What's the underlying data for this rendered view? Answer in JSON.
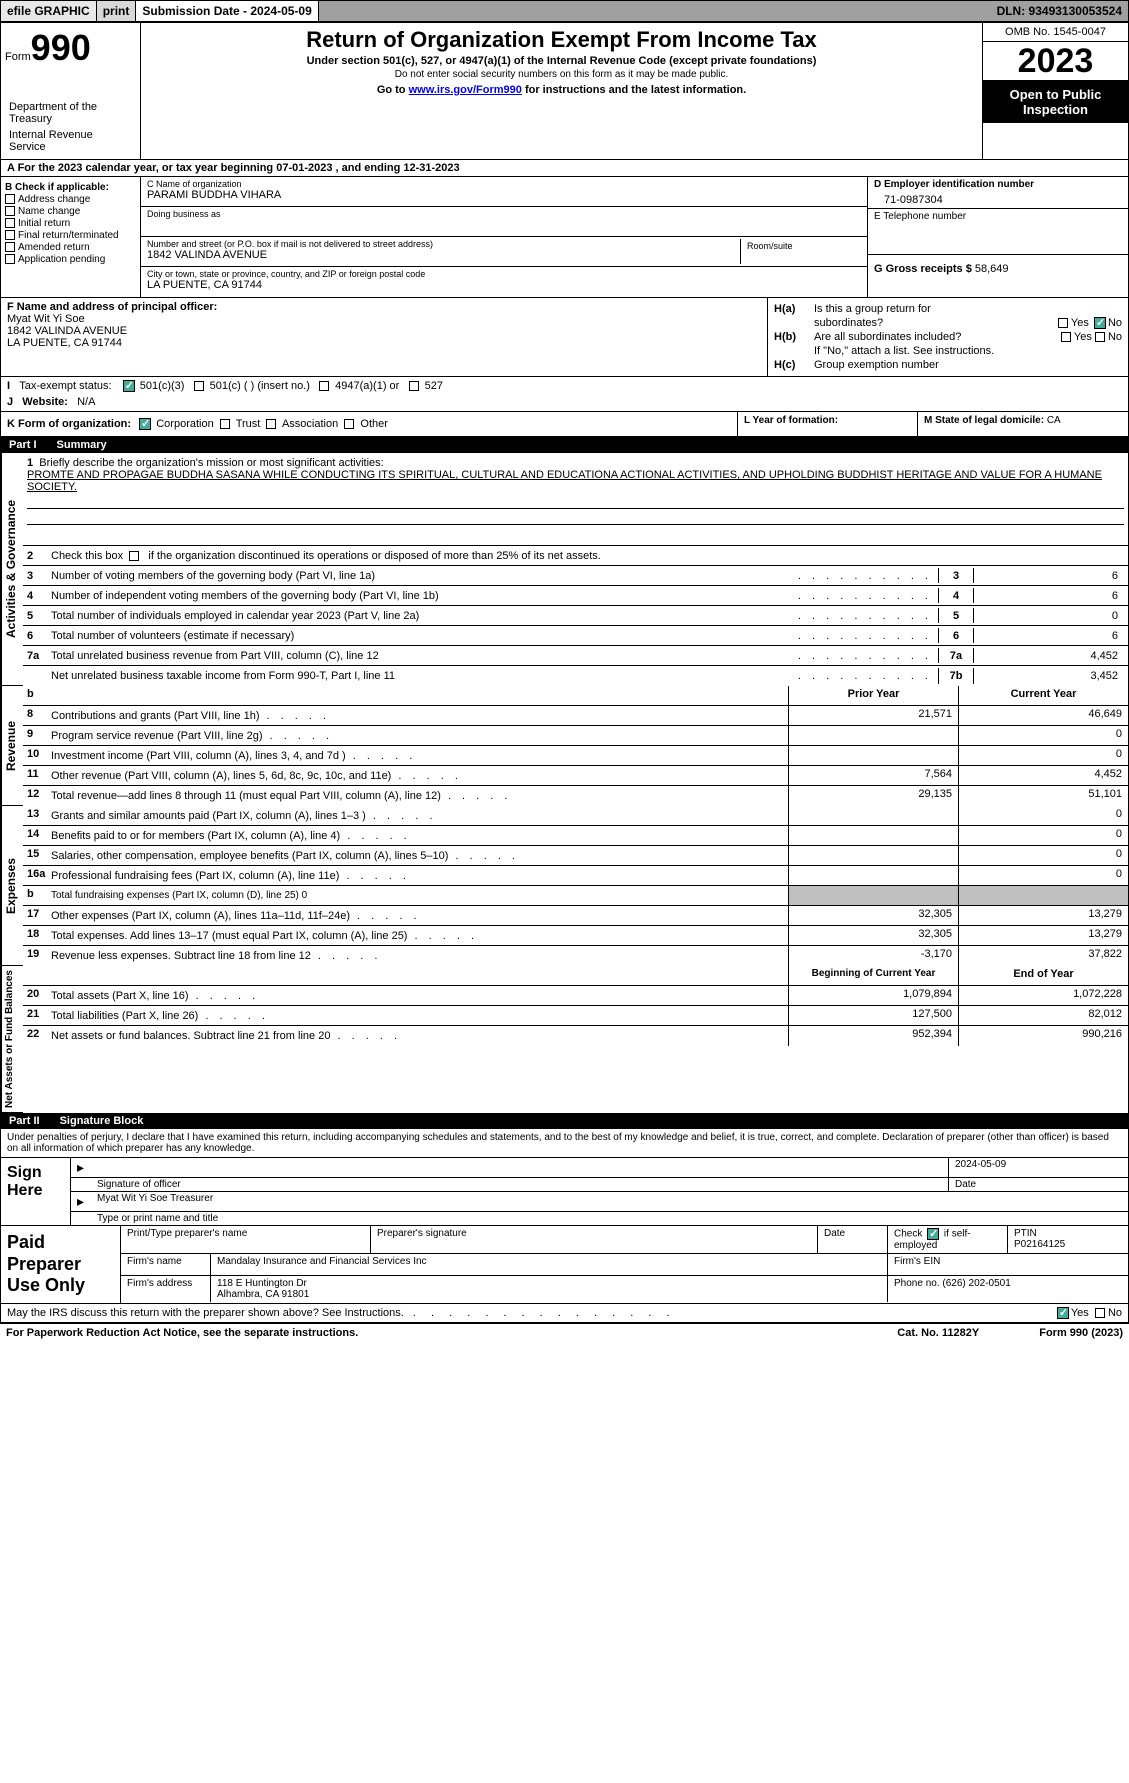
{
  "topbar": {
    "efile": "efile GRAPHIC",
    "print": "print",
    "submission": "Submission Date - 2024-05-09",
    "dln": "DLN: 93493130053524"
  },
  "header": {
    "form_label": "Form",
    "form_no": "990",
    "dept": "Department of the Treasury",
    "irs": "Internal Revenue Service",
    "title": "Return of Organization Exempt From Income Tax",
    "subtitle": "Under section 501(c), 527, or 4947(a)(1) of the Internal Revenue Code (except private foundations)",
    "subtext": "Do not enter social security numbers on this form as it may be made public.",
    "goto_pre": "Go to ",
    "goto_link": "www.irs.gov/Form990",
    "goto_post": " for instructions and the latest information.",
    "omb": "OMB No. 1545-0047",
    "year": "2023",
    "inspection": "Open to Public Inspection"
  },
  "period": {
    "a_pre": "A For the 2023 calendar year, or tax year beginning ",
    "begin": "07-01-2023",
    "mid": " , and ending ",
    "end": "12-31-2023"
  },
  "secB": {
    "label": "B Check if applicable:",
    "items": [
      "Address change",
      "Name change",
      "Initial return",
      "Final return/terminated",
      "Amended return",
      "Application pending"
    ]
  },
  "secC": {
    "name_label": "C Name of organization",
    "name_val": "PARAMI BUDDHA VIHARA",
    "dba_label": "Doing business as",
    "dba_val": "",
    "addr_label": "Number and street (or P.O. box if mail is not delivered to street address)",
    "room_label": "Room/suite",
    "addr_val": "1842 VALINDA AVENUE",
    "city_label": "City or town, state or province, country, and ZIP or foreign postal code",
    "city_val": "LA PUENTE, CA  91744"
  },
  "secD": {
    "label": "D Employer identification number",
    "val": "71-0987304"
  },
  "secE": {
    "label": "E Telephone number",
    "val": ""
  },
  "secG": {
    "label": "G Gross receipts $",
    "val": "58,649"
  },
  "secF": {
    "label": "F Name and address of principal officer:",
    "name": "Myat Wit Yi Soe",
    "addr1": "1842 VALINDA AVENUE",
    "addr2": "LA PUENTE, CA  91744"
  },
  "secH": {
    "a": "Is this a group return for",
    "a2": "subordinates?",
    "b": "Are all subordinates included?",
    "note": "If \"No,\" attach a list. See instructions.",
    "c": "Group exemption number",
    "yes": "Yes",
    "no": "No"
  },
  "secI": {
    "label": "Tax-exempt status:",
    "o1": "501(c)(3)",
    "o2": "501(c) (  ) (insert no.)",
    "o3": "4947(a)(1) or",
    "o4": "527"
  },
  "secJ": {
    "label": "Website:",
    "val": "N/A"
  },
  "secK": {
    "label": "K Form of organization:",
    "o1": "Corporation",
    "o2": "Trust",
    "o3": "Association",
    "o4": "Other"
  },
  "secL": {
    "label": "L Year of formation:",
    "val": ""
  },
  "secM": {
    "label": "M State of legal domicile:",
    "val": "CA"
  },
  "part1": {
    "num": "Part I",
    "title": "Summary"
  },
  "mission": {
    "num": "1",
    "label": "Briefly describe the organization's mission or most significant activities:",
    "text": "PROMTE AND PROPAGAE BUDDHA SASANA WHILE CONDUCTING ITS SPIRITUAL, CULTURAL AND EDUCATIONA ACTIONAL ACTIVITIES, AND UPHOLDING BUDDHIST HERITAGE AND VALUE FOR A HUMANE SOCIETY."
  },
  "line2": "Check this box    if the organization discontinued its operations or disposed of more than 25% of its net assets.",
  "govRows": [
    {
      "n": "3",
      "t": "Number of voting members of the governing body (Part VI, line 1a)",
      "r": "3",
      "v": "6"
    },
    {
      "n": "4",
      "t": "Number of independent voting members of the governing body (Part VI, line 1b)",
      "r": "4",
      "v": "6"
    },
    {
      "n": "5",
      "t": "Total number of individuals employed in calendar year 2023 (Part V, line 2a)",
      "r": "5",
      "v": "0"
    },
    {
      "n": "6",
      "t": "Total number of volunteers (estimate if necessary)",
      "r": "6",
      "v": "6"
    },
    {
      "n": "7a",
      "t": "Total unrelated business revenue from Part VIII, column (C), line 12",
      "r": "7a",
      "v": "4,452"
    },
    {
      "n": "",
      "t": "Net unrelated business taxable income from Form 990-T, Part I, line 11",
      "r": "7b",
      "v": "3,452"
    }
  ],
  "pyHdr": "Prior Year",
  "cyHdr": "Current Year",
  "revRows": [
    {
      "n": "8",
      "t": "Contributions and grants (Part VIII, line 1h)",
      "p": "21,571",
      "c": "46,649"
    },
    {
      "n": "9",
      "t": "Program service revenue (Part VIII, line 2g)",
      "p": "",
      "c": "0"
    },
    {
      "n": "10",
      "t": "Investment income (Part VIII, column (A), lines 3, 4, and 7d )",
      "p": "",
      "c": "0"
    },
    {
      "n": "11",
      "t": "Other revenue (Part VIII, column (A), lines 5, 6d, 8c, 9c, 10c, and 11e)",
      "p": "7,564",
      "c": "4,452"
    },
    {
      "n": "12",
      "t": "Total revenue—add lines 8 through 11 (must equal Part VIII, column (A), line 12)",
      "p": "29,135",
      "c": "51,101"
    }
  ],
  "expRows": [
    {
      "n": "13",
      "t": "Grants and similar amounts paid (Part IX, column (A), lines 1–3 )",
      "p": "",
      "c": "0"
    },
    {
      "n": "14",
      "t": "Benefits paid to or for members (Part IX, column (A), line 4)",
      "p": "",
      "c": "0"
    },
    {
      "n": "15",
      "t": "Salaries, other compensation, employee benefits (Part IX, column (A), lines 5–10)",
      "p": "",
      "c": "0"
    },
    {
      "n": "16a",
      "t": "Professional fundraising fees (Part IX, column (A), line 11e)",
      "p": "",
      "c": "0"
    }
  ],
  "line16b": {
    "n": "b",
    "t": "Total fundraising expenses (Part IX, column (D), line 25) 0"
  },
  "expRows2": [
    {
      "n": "17",
      "t": "Other expenses (Part IX, column (A), lines 11a–11d, 11f–24e)",
      "p": "32,305",
      "c": "13,279"
    },
    {
      "n": "18",
      "t": "Total expenses. Add lines 13–17 (must equal Part IX, column (A), line 25)",
      "p": "32,305",
      "c": "13,279"
    },
    {
      "n": "19",
      "t": "Revenue less expenses. Subtract line 18 from line 12",
      "p": "-3,170",
      "c": "37,822"
    }
  ],
  "byHdr": "Beginning of Current Year",
  "eyHdr": "End of Year",
  "netRows": [
    {
      "n": "20",
      "t": "Total assets (Part X, line 16)",
      "p": "1,079,894",
      "c": "1,072,228"
    },
    {
      "n": "21",
      "t": "Total liabilities (Part X, line 26)",
      "p": "127,500",
      "c": "82,012"
    },
    {
      "n": "22",
      "t": "Net assets or fund balances. Subtract line 21 from line 20",
      "p": "952,394",
      "c": "990,216"
    }
  ],
  "part2": {
    "num": "Part II",
    "title": "Signature Block"
  },
  "perjury": "Under penalties of perjury, I declare that I have examined this return, including accompanying schedules and statements, and to the best of my knowledge and belief, it is true, correct, and complete. Declaration of preparer (other than officer) is based on all information of which preparer has any knowledge.",
  "sign": {
    "here": "Sign Here",
    "date": "2024-05-09",
    "sig_label": "Signature of officer",
    "date_label": "Date",
    "officer": "Myat Wit Yi Soe  Treasurer",
    "type_label": "Type or print name and title"
  },
  "paid": {
    "title": "Paid Preparer Use Only",
    "name_label": "Print/Type preparer's name",
    "sig_label": "Preparer's signature",
    "date_label": "Date",
    "check_label": "Check",
    "self_label": "if self-employed",
    "ptin_label": "PTIN",
    "ptin": "P02164125",
    "firm_name_label": "Firm's name",
    "firm_name": "Mandalay Insurance and Financial Services Inc",
    "firm_ein_label": "Firm's EIN",
    "firm_addr_label": "Firm's address",
    "firm_addr1": "118 E Huntington Dr",
    "firm_addr2": "Alhambra, CA  91801",
    "phone_label": "Phone no.",
    "phone": "(626) 202-0501"
  },
  "discuss": "May the IRS discuss this return with the preparer shown above? See Instructions.",
  "footer": {
    "left": "For Paperwork Reduction Act Notice, see the separate instructions.",
    "mid": "Cat. No. 11282Y",
    "right": "Form 990 (2023)"
  },
  "vtabs": {
    "gov": "Activities & Governance",
    "rev": "Revenue",
    "exp": "Expenses",
    "net": "Net Assets or Fund Balances"
  }
}
